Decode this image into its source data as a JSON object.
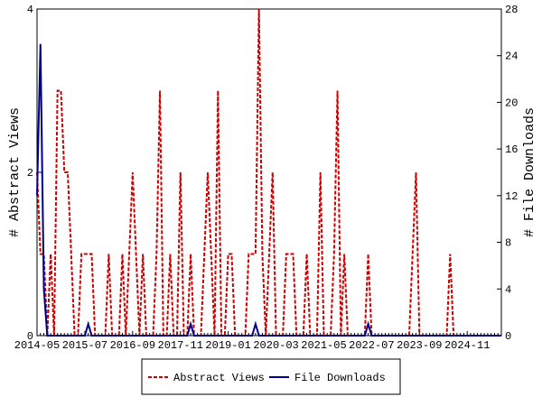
{
  "chart_data": {
    "type": "line",
    "y_label": "# Abstract Views",
    "y2_label": "# File Downloads",
    "categories": [
      "2014-05",
      null,
      null,
      null,
      null,
      null,
      null,
      null,
      null,
      null,
      null,
      null,
      null,
      null,
      "2015-07",
      null,
      null,
      null,
      null,
      null,
      null,
      null,
      null,
      null,
      null,
      null,
      null,
      null,
      "2016-09",
      null,
      null,
      null,
      null,
      null,
      null,
      null,
      null,
      null,
      null,
      null,
      null,
      null,
      "2017-11",
      null,
      null,
      null,
      null,
      null,
      null,
      null,
      null,
      null,
      null,
      null,
      null,
      null,
      "2019-01",
      null,
      null,
      null,
      null,
      null,
      null,
      null,
      null,
      null,
      null,
      null,
      null,
      null,
      "2020-03",
      null,
      null,
      null,
      null,
      null,
      null,
      null,
      null,
      null,
      null,
      null,
      null,
      null,
      "2021-05",
      null,
      null,
      null,
      null,
      null,
      null,
      null,
      null,
      null,
      null,
      null,
      null,
      null,
      "2022-07",
      null,
      null,
      null,
      null,
      null,
      null,
      null,
      null,
      null,
      null,
      null,
      null,
      null,
      "2023-09",
      null,
      null,
      null,
      null,
      null,
      null,
      null,
      null,
      null,
      null,
      null,
      null,
      null,
      "2024-11",
      null,
      null,
      null,
      null,
      null,
      null,
      null,
      null,
      null,
      null
    ],
    "series": [
      {
        "name": "Abstract Views",
        "color": "#cc0000",
        "dashed": true,
        "values": [
          2,
          1,
          1,
          0,
          1,
          0,
          3,
          3,
          2,
          2,
          1,
          0,
          0,
          1,
          1,
          1,
          1,
          0,
          0,
          0,
          0,
          1,
          0,
          0,
          0,
          1,
          0,
          1,
          2,
          1,
          0,
          1,
          0,
          0,
          0,
          1,
          3,
          0,
          0,
          1,
          0,
          0,
          2,
          0,
          0,
          1,
          0,
          0,
          0,
          1,
          2,
          1,
          0,
          3,
          0,
          0,
          1,
          1,
          0,
          0,
          0,
          0,
          1,
          1,
          1,
          4,
          1,
          0,
          1,
          2,
          0,
          0,
          0,
          1,
          1,
          1,
          0,
          0,
          0,
          1,
          0,
          0,
          0,
          2,
          0,
          0,
          0,
          1,
          3,
          0,
          1,
          0,
          0,
          0,
          0,
          0,
          0,
          1,
          0,
          0,
          0,
          0,
          0,
          0,
          0,
          0,
          0,
          0,
          0,
          0,
          1,
          2,
          0,
          0,
          0,
          0,
          0,
          0,
          0,
          0,
          0,
          1,
          0,
          0,
          0,
          0,
          0,
          0,
          0,
          0,
          0,
          0,
          0,
          0,
          0,
          0,
          0
        ]
      },
      {
        "name": "File Downloads",
        "color": "#00008b",
        "axis": "y2",
        "values": [
          12,
          25,
          4,
          0,
          0,
          0,
          0,
          0,
          0,
          0,
          0,
          0,
          0,
          0,
          0,
          1,
          0,
          0,
          0,
          0,
          0,
          0,
          0,
          0,
          0,
          0,
          0,
          0,
          0,
          0,
          0,
          0,
          0,
          0,
          0,
          0,
          0,
          0,
          0,
          0,
          0,
          0,
          0,
          0,
          0,
          1,
          0,
          0,
          0,
          0,
          0,
          0,
          0,
          0,
          0,
          0,
          0,
          0,
          0,
          0,
          0,
          0,
          0,
          0,
          1,
          0,
          0,
          0,
          0,
          0,
          0,
          0,
          0,
          0,
          0,
          0,
          0,
          0,
          0,
          0,
          0,
          0,
          0,
          0,
          0,
          0,
          0,
          0,
          0,
          0,
          0,
          0,
          0,
          0,
          0,
          0,
          0,
          1,
          0,
          0,
          0,
          0,
          0,
          0,
          0,
          0,
          0,
          0,
          0,
          0,
          0,
          0,
          0,
          0,
          0,
          0,
          0,
          0,
          0,
          0,
          0,
          0,
          0,
          0,
          0,
          0,
          0,
          0,
          0,
          0,
          0,
          0,
          0,
          0,
          0,
          0,
          0
        ]
      }
    ],
    "ylim": [
      0,
      4
    ],
    "yticks": [
      0,
      2,
      4
    ],
    "y2lim": [
      0,
      28
    ],
    "y2ticks": [
      0,
      4,
      8,
      12,
      16,
      20,
      24,
      28
    ],
    "legend": "bottom"
  }
}
